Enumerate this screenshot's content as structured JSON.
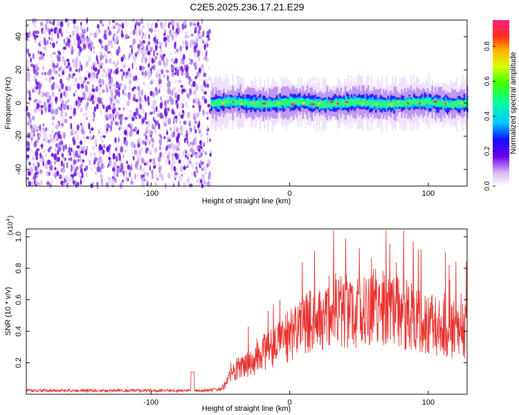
{
  "title": "C2E5.2025.236.17.21.E29",
  "chart_data": [
    {
      "type": "heatmap",
      "name": "spectrogram",
      "xlabel": "Height of straight line (km)",
      "ylabel": "Frequency (Hz)",
      "xlim": [
        -190,
        128
      ],
      "ylim": [
        -50,
        50
      ],
      "xticks": [
        -100,
        0,
        100
      ],
      "yticks": [
        -40,
        -20,
        0,
        20,
        40
      ],
      "noise_region_x": [
        -190,
        -57
      ],
      "signal_region_x": [
        -57,
        128
      ],
      "signal_center_hz": 0,
      "signal_halfwidth_hz": 5,
      "colorbar": {
        "label": "Normalized spectral amplitude",
        "range": [
          0,
          0.95
        ],
        "ticks": [
          0.0,
          0.2,
          0.4,
          0.6,
          0.8
        ]
      }
    },
    {
      "type": "line",
      "name": "snr",
      "color": "#e8302c",
      "xlabel": "Height of straight line (km)",
      "ylabel": "SNR (10 * v/v)",
      "yscale_label": "(x10",
      "yscale_exp": "4",
      "xlim": [
        -190,
        128
      ],
      "ylim": [
        0,
        1.05
      ],
      "xticks": [
        -100,
        0,
        100
      ],
      "yticks": [
        0.2,
        0.4,
        0.6,
        0.8,
        1.0
      ],
      "series": [
        {
          "name": "SNR",
          "x": [
            -190,
            -150,
            -110,
            -80,
            -70,
            -60,
            -50,
            -45,
            -40,
            -35,
            -30,
            -25,
            -20,
            -15,
            -10,
            -5,
            0,
            5,
            10,
            15,
            20,
            25,
            30,
            35,
            40,
            45,
            50,
            55,
            60,
            65,
            70,
            75,
            80,
            85,
            90,
            95,
            100,
            105,
            110,
            115,
            120,
            128
          ],
          "values": [
            0.02,
            0.02,
            0.02,
            0.02,
            0.02,
            0.02,
            0.03,
            0.08,
            0.15,
            0.18,
            0.2,
            0.22,
            0.27,
            0.28,
            0.3,
            0.34,
            0.38,
            0.4,
            0.43,
            0.46,
            0.5,
            0.52,
            0.52,
            0.54,
            0.53,
            0.52,
            0.52,
            0.54,
            0.55,
            0.56,
            0.55,
            0.53,
            0.52,
            0.5,
            0.48,
            0.45,
            0.44,
            0.43,
            0.42,
            0.42,
            0.41,
            0.4
          ]
        }
      ]
    }
  ]
}
